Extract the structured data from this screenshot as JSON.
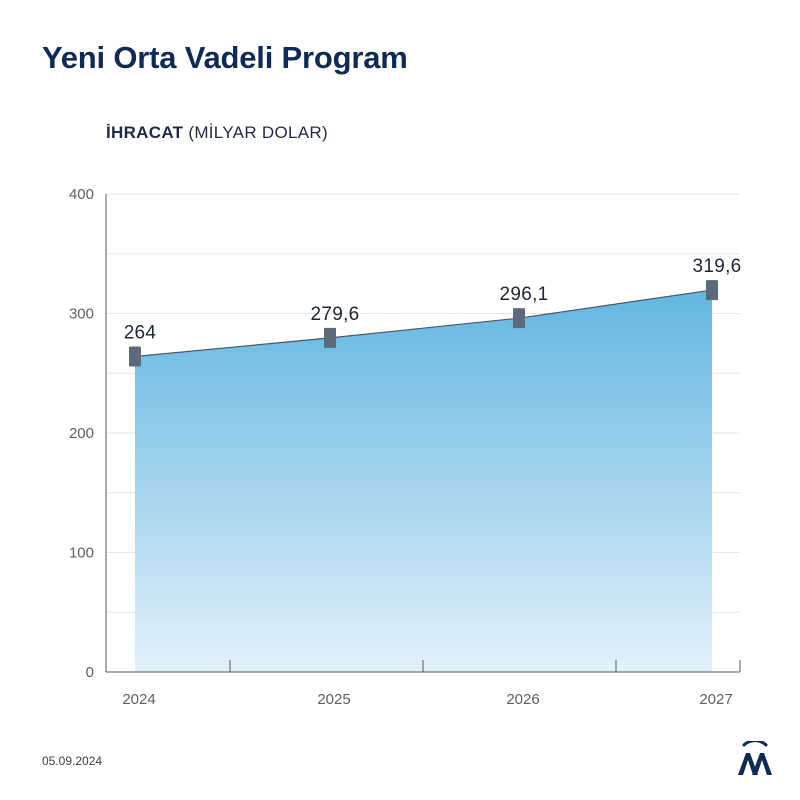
{
  "title": "Yeni Orta Vadeli Program",
  "subtitle_bold": "İHRACAT",
  "subtitle_rest": " (MİLYAR DOLAR)",
  "footer_date": "05.09.2024",
  "logo_label": "AA",
  "colors": {
    "title": "#0e2a57",
    "area_top": "#62b6e0",
    "area_bottom": "#e3f1fa",
    "marker": "#5d6a7b",
    "line": "#4a5566",
    "grid": "#e6e6e6",
    "axis": "#555a60"
  },
  "chart_data": {
    "type": "area",
    "categories": [
      "2024",
      "2025",
      "2026",
      "2027"
    ],
    "values": [
      264,
      279.6,
      296.1,
      319.6
    ],
    "value_labels": [
      "264",
      "279,6",
      "296,1",
      "319,6"
    ],
    "yticks": [
      0,
      100,
      200,
      300,
      400
    ],
    "ylim": [
      0,
      400
    ],
    "grid": true,
    "title": "Yeni Orta Vadeli Program",
    "ylabel": "İHRACAT (MİLYAR DOLAR)",
    "xlabel": ""
  }
}
